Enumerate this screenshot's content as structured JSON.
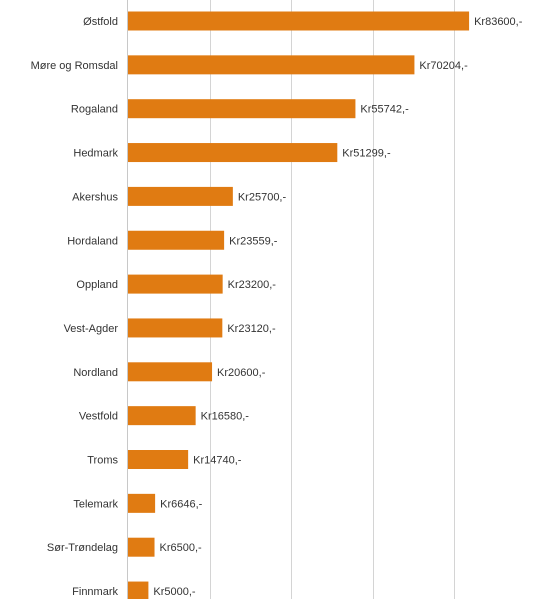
{
  "chart_data": {
    "type": "bar",
    "orientation": "horizontal",
    "categories": [
      "Østfold",
      "Møre og Romsdal",
      "Rogaland",
      "Hedmark",
      "Akershus",
      "Hordaland",
      "Oppland",
      "Vest-Agder",
      "Nordland",
      "Vestfold",
      "Troms",
      "Telemark",
      "Sør-Trøndelag",
      "Finnmark"
    ],
    "values": [
      83600,
      70204,
      55742,
      51299,
      25700,
      23559,
      23200,
      23120,
      20600,
      16580,
      14740,
      6646,
      6500,
      5000
    ],
    "data_labels": [
      "Kr83600,-",
      "Kr70204,-",
      "Kr55742,-",
      "Kr51299,-",
      "Kr25700,-",
      "Kr23559,-",
      "Kr23200,-",
      "Kr23120,-",
      "Kr20600,-",
      "Kr16580,-",
      "Kr14740,-",
      "Kr6646,-",
      "Kr6500,-",
      "Kr5000,-"
    ],
    "xlim": [
      0,
      100000
    ],
    "grid": true,
    "colors": {
      "bar": "#E07B12",
      "grid": "#d4d4d4",
      "text": "#333333"
    }
  }
}
